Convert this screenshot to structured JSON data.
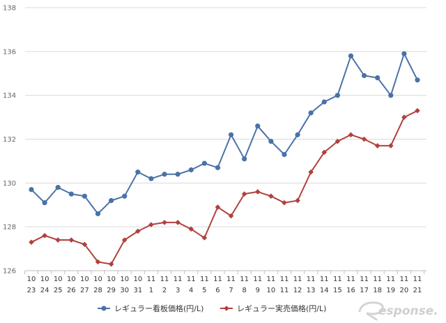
{
  "chart_data": {
    "type": "line",
    "title": "",
    "xlabel": "",
    "ylabel": "",
    "ylim": [
      126,
      138
    ],
    "y_ticks": [
      126,
      128,
      130,
      132,
      134,
      136,
      138
    ],
    "grid": "horizontal",
    "legend_position": "bottom",
    "categories": [
      [
        "10",
        "23"
      ],
      [
        "10",
        "24"
      ],
      [
        "10",
        "25"
      ],
      [
        "10",
        "26"
      ],
      [
        "10",
        "27"
      ],
      [
        "10",
        "28"
      ],
      [
        "10",
        "29"
      ],
      [
        "10",
        "30"
      ],
      [
        "10",
        "31"
      ],
      [
        "11",
        "1"
      ],
      [
        "11",
        "2"
      ],
      [
        "11",
        "3"
      ],
      [
        "11",
        "4"
      ],
      [
        "11",
        "5"
      ],
      [
        "11",
        "6"
      ],
      [
        "11",
        "7"
      ],
      [
        "11",
        "8"
      ],
      [
        "11",
        "9"
      ],
      [
        "11",
        "10"
      ],
      [
        "11",
        "11"
      ],
      [
        "11",
        "12"
      ],
      [
        "11",
        "13"
      ],
      [
        "11",
        "14"
      ],
      [
        "11",
        "15"
      ],
      [
        "11",
        "16"
      ],
      [
        "11",
        "17"
      ],
      [
        "11",
        "18"
      ],
      [
        "11",
        "19"
      ],
      [
        "11",
        "20"
      ],
      [
        "11",
        "21"
      ]
    ],
    "series": [
      {
        "name": "レギュラー看板価格(円/L)",
        "color": "#4a72a8",
        "marker": "circle",
        "values": [
          129.7,
          129.1,
          129.8,
          129.5,
          129.4,
          128.6,
          129.2,
          129.4,
          130.5,
          130.2,
          130.4,
          130.4,
          130.6,
          130.9,
          130.7,
          132.2,
          131.1,
          132.6,
          131.9,
          131.3,
          132.2,
          133.2,
          133.7,
          134.0,
          135.8,
          134.9,
          134.8,
          134.0,
          135.9,
          134.7
        ]
      },
      {
        "name": "レギュラー実売価格(円/L)",
        "color": "#b0413e",
        "marker": "diamond",
        "values": [
          127.3,
          127.6,
          127.4,
          127.4,
          127.2,
          126.4,
          126.3,
          127.4,
          127.8,
          128.1,
          128.2,
          128.2,
          127.9,
          127.5,
          128.9,
          128.5,
          129.5,
          129.6,
          129.4,
          129.1,
          129.2,
          130.5,
          131.4,
          131.9,
          132.2,
          132.0,
          131.7,
          131.7,
          133.0,
          133.3
        ]
      }
    ]
  },
  "watermark": {
    "text": "Response."
  }
}
